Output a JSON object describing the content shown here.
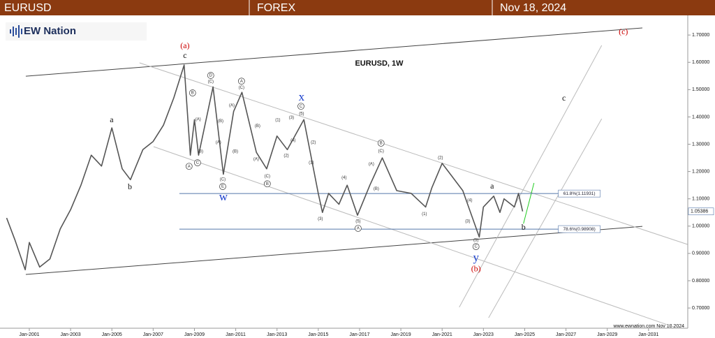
{
  "header": {
    "symbol": "EURUSD",
    "market": "FOREX",
    "date": "Nov 18, 2024"
  },
  "logo": "EW Nation",
  "watermark": "www.ewnation.com Nov 18 2024",
  "chart_data": {
    "type": "line",
    "title": "EURUSD, 1W",
    "x": [
      1999.9,
      2000.3,
      2000.8,
      2001.0,
      2001.5,
      2002.0,
      2002.5,
      2003.0,
      2003.5,
      2004.0,
      2004.5,
      2005.0,
      2005.5,
      2005.9,
      2006.5,
      2007.0,
      2007.5,
      2008.0,
      2008.5,
      2008.8,
      2009.0,
      2009.2,
      2009.9,
      2010.4,
      2010.9,
      2011.3,
      2012.0,
      2012.5,
      2013.0,
      2013.5,
      2014.3,
      2015.0,
      2015.2,
      2015.5,
      2016.0,
      2016.4,
      2016.9,
      2017.5,
      2018.1,
      2018.8,
      2019.5,
      2020.2,
      2020.5,
      2021.0,
      2021.5,
      2022.0,
      2022.8,
      2023.0,
      2023.5,
      2023.8,
      2024.0,
      2024.5,
      2024.7,
      2024.9
    ],
    "values": [
      1.03,
      0.95,
      0.84,
      0.94,
      0.85,
      0.88,
      0.99,
      1.06,
      1.15,
      1.26,
      1.22,
      1.36,
      1.21,
      1.17,
      1.28,
      1.31,
      1.37,
      1.47,
      1.59,
      1.26,
      1.39,
      1.26,
      1.51,
      1.19,
      1.42,
      1.49,
      1.27,
      1.21,
      1.33,
      1.28,
      1.39,
      1.12,
      1.05,
      1.12,
      1.08,
      1.15,
      1.04,
      1.15,
      1.25,
      1.13,
      1.12,
      1.07,
      1.14,
      1.23,
      1.18,
      1.13,
      0.96,
      1.07,
      1.11,
      1.05,
      1.1,
      1.07,
      1.12,
      1.054
    ],
    "color": "#555555",
    "last_price": 1.05386,
    "xlim": [
      1999.58,
      2032.9
    ],
    "ylim": [
      0.626,
      1.772
    ],
    "xticks": [
      {
        "value": 2001,
        "label": "Jan-2001"
      },
      {
        "value": 2003,
        "label": "Jan-2003"
      },
      {
        "value": 2005,
        "label": "Jan-2005"
      },
      {
        "value": 2007,
        "label": "Jan-2007"
      },
      {
        "value": 2009,
        "label": "Jan-2009"
      },
      {
        "value": 2011,
        "label": "Jan-2011"
      },
      {
        "value": 2013,
        "label": "Jan-2013"
      },
      {
        "value": 2015,
        "label": "Jan-2015"
      },
      {
        "value": 2017,
        "label": "Jan-2017"
      },
      {
        "value": 2019,
        "label": "Jan-2019"
      },
      {
        "value": 2021,
        "label": "Jan-2021"
      },
      {
        "value": 2023,
        "label": "Jan-2023"
      },
      {
        "value": 2025,
        "label": "Jan-2025"
      },
      {
        "value": 2027,
        "label": "Jan-2027"
      },
      {
        "value": 2029,
        "label": "Jan-2029"
      },
      {
        "value": 2031,
        "label": "Jan-2031"
      }
    ],
    "yticks": [
      {
        "value": 0.7,
        "label": "0.70000"
      },
      {
        "value": 0.8,
        "label": "0.80000"
      },
      {
        "value": 0.9,
        "label": "0.90000"
      },
      {
        "value": 1.0,
        "label": "1.00000"
      },
      {
        "value": 1.1,
        "label": "1.10000"
      },
      {
        "value": 1.2,
        "label": "1.20000"
      },
      {
        "value": 1.3,
        "label": "1.30000"
      },
      {
        "value": 1.4,
        "label": "1.40000"
      },
      {
        "value": 1.5,
        "label": "1.50000"
      },
      {
        "value": 1.6,
        "label": "1.60000"
      },
      {
        "value": 1.7,
        "label": "1.70000"
      }
    ],
    "grid": false,
    "lines": [
      {
        "x": [
          2000.83,
          2030.7
        ],
        "values": [
          1.549,
          1.726
        ],
        "color": "#444444"
      },
      {
        "x": [
          2000.83,
          2030.7
        ],
        "values": [
          0.823,
          0.999
        ],
        "color": "#444444"
      },
      {
        "x": [
          2006.34,
          2032.89
        ],
        "values": [
          1.598,
          0.933
        ],
        "color": "#bbbbbb"
      },
      {
        "x": [
          2007.02,
          2032.21
        ],
        "values": [
          1.291,
          0.631
        ],
        "color": "#bbbbbb"
      },
      {
        "x": [
          2021.83,
          2028.73
        ],
        "values": [
          0.703,
          1.662
        ],
        "color": "#bbbbbb"
      },
      {
        "x": [
          2023.25,
          2028.73
        ],
        "values": [
          0.664,
          1.393
        ],
        "color": "#bbbbbb"
      },
      {
        "x": [
          2024.94,
          2025.45
        ],
        "values": [
          1.009,
          1.158
        ],
        "color": "#22cc22"
      }
    ],
    "hlines": [
      {
        "value": 1.11931,
        "label": "61.8%(1.11931)",
        "x": [
          2008.27,
          2026.63
        ],
        "color": "#5577aa"
      },
      {
        "value": 0.98908,
        "label": "78.6%(0.98908)",
        "x": [
          2008.27,
          2026.63
        ],
        "color": "#5577aa"
      }
    ],
    "annotations": [
      {
        "text": "(a)",
        "x": 2008.54,
        "y": 1.659,
        "color": "#cc0000"
      },
      {
        "text": "c",
        "x": 2008.54,
        "y": 1.623,
        "color": "#111111"
      },
      {
        "text": "a",
        "x": 2004.99,
        "y": 1.388,
        "color": "#111111"
      },
      {
        "text": "b",
        "x": 2005.87,
        "y": 1.142,
        "color": "#111111"
      },
      {
        "text": "w",
        "x": 2010.4,
        "y": 1.104,
        "color": "#1a3fcc"
      },
      {
        "text": "x",
        "x": 2014.19,
        "y": 1.47,
        "color": "#1a3fcc"
      },
      {
        "text": "y",
        "x": 2022.64,
        "y": 0.882,
        "color": "#1a3fcc"
      },
      {
        "text": "(b)",
        "x": 2022.64,
        "y": 0.841,
        "color": "#cc0000"
      },
      {
        "text": "(c)",
        "x": 2029.78,
        "y": 1.71,
        "color": "#cc0000"
      },
      {
        "text": "c",
        "x": 2026.9,
        "y": 1.467,
        "color": "#111111"
      },
      {
        "text": "a",
        "x": 2023.42,
        "y": 1.145,
        "color": "#111111"
      },
      {
        "text": "b",
        "x": 2024.94,
        "y": 0.994,
        "color": "#111111"
      },
      {
        "text": "D",
        "x": 2009.79,
        "y": 1.552,
        "color": "#333333",
        "circled": true
      },
      {
        "text": "(C)",
        "x": 2009.79,
        "y": 1.529,
        "color": "#333333"
      },
      {
        "text": "B",
        "x": 2008.91,
        "y": 1.488,
        "color": "#333333",
        "circled": true
      },
      {
        "text": "A",
        "x": 2008.74,
        "y": 1.219,
        "color": "#333333",
        "circled": true
      },
      {
        "text": "C",
        "x": 2009.15,
        "y": 1.232,
        "color": "#333333",
        "circled": true
      },
      {
        "text": "(A)",
        "x": 2009.18,
        "y": 1.391,
        "color": "#333333"
      },
      {
        "text": "(B)",
        "x": 2009.29,
        "y": 1.273,
        "color": "#333333"
      },
      {
        "text": "(B)",
        "x": 2010.27,
        "y": 1.385,
        "color": "#333333"
      },
      {
        "text": "(A)",
        "x": 2010.16,
        "y": 1.306,
        "color": "#333333"
      },
      {
        "text": "(C)",
        "x": 2010.37,
        "y": 1.171,
        "color": "#333333"
      },
      {
        "text": "E",
        "x": 2010.37,
        "y": 1.145,
        "color": "#333333",
        "circled": true
      },
      {
        "text": "A",
        "x": 2011.28,
        "y": 1.531,
        "color": "#333333",
        "circled": true
      },
      {
        "text": "(C)",
        "x": 2011.28,
        "y": 1.508,
        "color": "#333333"
      },
      {
        "text": "(A)",
        "x": 2010.81,
        "y": 1.442,
        "color": "#333333"
      },
      {
        "text": "(B)",
        "x": 2010.98,
        "y": 1.273,
        "color": "#333333"
      },
      {
        "text": "(B)",
        "x": 2012.06,
        "y": 1.367,
        "color": "#333333"
      },
      {
        "text": "(A)",
        "x": 2011.99,
        "y": 1.245,
        "color": "#333333"
      },
      {
        "text": "(C)",
        "x": 2012.53,
        "y": 1.183,
        "color": "#333333"
      },
      {
        "text": "B",
        "x": 2012.53,
        "y": 1.155,
        "color": "#333333",
        "circled": true
      },
      {
        "text": "C",
        "x": 2014.16,
        "y": 1.439,
        "color": "#333333",
        "circled": true
      },
      {
        "text": "(5)",
        "x": 2014.19,
        "y": 1.411,
        "color": "#333333"
      },
      {
        "text": "(3)",
        "x": 2013.7,
        "y": 1.398,
        "color": "#333333"
      },
      {
        "text": "(1)",
        "x": 2013.04,
        "y": 1.388,
        "color": "#333333"
      },
      {
        "text": "(2)",
        "x": 2013.45,
        "y": 1.258,
        "color": "#333333"
      },
      {
        "text": "(4)",
        "x": 2013.78,
        "y": 1.314,
        "color": "#333333"
      },
      {
        "text": "(2)",
        "x": 2014.76,
        "y": 1.306,
        "color": "#333333"
      },
      {
        "text": "(1)",
        "x": 2014.66,
        "y": 1.232,
        "color": "#333333"
      },
      {
        "text": "(3)",
        "x": 2015.1,
        "y": 1.027,
        "color": "#333333"
      },
      {
        "text": "(4)",
        "x": 2016.25,
        "y": 1.178,
        "color": "#333333"
      },
      {
        "text": "(5)",
        "x": 2016.93,
        "y": 1.017,
        "color": "#333333"
      },
      {
        "text": "A",
        "x": 2016.93,
        "y": 0.992,
        "color": "#333333",
        "circled": true
      },
      {
        "text": "B",
        "x": 2018.04,
        "y": 1.304,
        "color": "#333333",
        "circled": true
      },
      {
        "text": "(C)",
        "x": 2018.04,
        "y": 1.275,
        "color": "#333333"
      },
      {
        "text": "(A)",
        "x": 2017.57,
        "y": 1.227,
        "color": "#333333"
      },
      {
        "text": "(B)",
        "x": 2017.81,
        "y": 1.137,
        "color": "#333333"
      },
      {
        "text": "(2)",
        "x": 2020.92,
        "y": 1.25,
        "color": "#333333"
      },
      {
        "text": "(1)",
        "x": 2020.14,
        "y": 1.045,
        "color": "#333333"
      },
      {
        "text": "(4)",
        "x": 2022.34,
        "y": 1.094,
        "color": "#333333"
      },
      {
        "text": "(3)",
        "x": 2022.24,
        "y": 1.017,
        "color": "#333333"
      },
      {
        "text": "(5)",
        "x": 2022.64,
        "y": 0.948,
        "color": "#333333"
      },
      {
        "text": "C",
        "x": 2022.64,
        "y": 0.925,
        "color": "#333333",
        "circled": true
      }
    ]
  }
}
